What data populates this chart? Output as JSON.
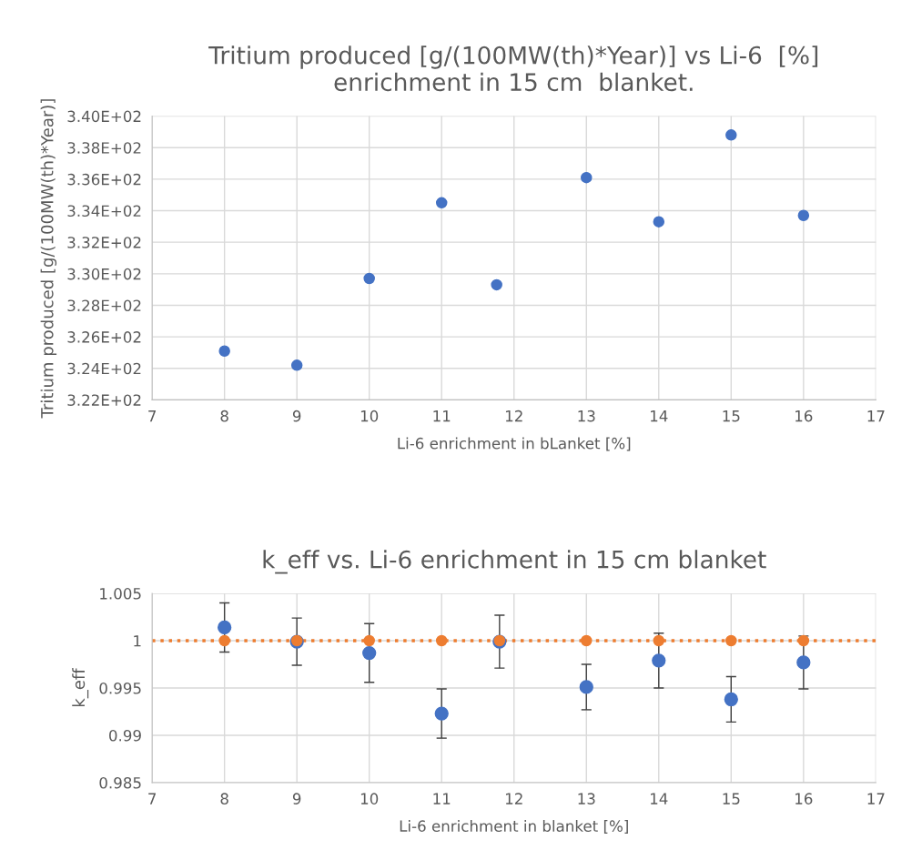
{
  "chart_data": [
    {
      "type": "scatter",
      "title": "Tritium produced [g/(100MW(th)*Year)] vs Li-6  [%]\nenrichment in 15 cm  blanket.",
      "xlabel": "Li-6 enrichment in bLanket [%]",
      "ylabel": "Tritium produced [g/(100MW(th)*Year)]",
      "x": [
        8,
        9,
        10,
        11,
        11.76,
        13,
        14,
        15,
        16
      ],
      "series": [
        {
          "color": "#4472c4",
          "values": [
            325.1,
            324.2,
            329.7,
            334.5,
            329.3,
            336.1,
            333.3,
            338.8,
            333.7
          ]
        }
      ],
      "xlim": [
        7,
        17
      ],
      "xticks": [
        7,
        8,
        9,
        10,
        11,
        12,
        13,
        14,
        15,
        16,
        17
      ],
      "ylim": [
        322,
        340
      ],
      "yticks": [
        {
          "value": 322,
          "label": "3.22E+02"
        },
        {
          "value": 324,
          "label": "3.24E+02"
        },
        {
          "value": 326,
          "label": "3.26E+02"
        },
        {
          "value": 328,
          "label": "3.28E+02"
        },
        {
          "value": 330,
          "label": "3.30E+02"
        },
        {
          "value": 332,
          "label": "3.32E+02"
        },
        {
          "value": 334,
          "label": "3.34E+02"
        },
        {
          "value": 336,
          "label": "3.36E+02"
        },
        {
          "value": 338,
          "label": "3.38E+02"
        },
        {
          "value": 340,
          "label": "3.40E+02"
        }
      ],
      "grid": true,
      "marker": "circle"
    },
    {
      "type": "scatter",
      "title": "k_eff vs. Li-6 enrichment in 15 cm blanket",
      "xlabel": "Li-6 enrichment in blanket [%]",
      "ylabel": "k_eff",
      "x": [
        8,
        9,
        10,
        11,
        11.8,
        13,
        14,
        15,
        16
      ],
      "series": [
        {
          "color": "#4472c4",
          "values": [
            1.0014,
            0.9999,
            0.9987,
            0.9923,
            0.9999,
            0.9951,
            0.9979,
            0.9938,
            0.9977
          ],
          "errors": [
            0.0026,
            0.0025,
            0.0031,
            0.0026,
            0.0028,
            0.0024,
            0.0029,
            0.0024,
            0.0028
          ]
        },
        {
          "type": "line",
          "color": "#ed7d31",
          "x": [
            7,
            17
          ],
          "values": [
            1,
            1
          ],
          "line_style": "dotted",
          "marker": "none"
        },
        {
          "color": "#ed7d31",
          "values": [
            1,
            1,
            1,
            1,
            1,
            1,
            1,
            1,
            1
          ]
        }
      ],
      "xlim": [
        7,
        17
      ],
      "xticks": [
        7,
        8,
        9,
        10,
        11,
        12,
        13,
        14,
        15,
        16,
        17
      ],
      "ylim": [
        0.985,
        1.005
      ],
      "yticks": [
        0.985,
        0.99,
        0.995,
        1,
        1.005
      ],
      "grid": true,
      "marker": "circle"
    }
  ]
}
